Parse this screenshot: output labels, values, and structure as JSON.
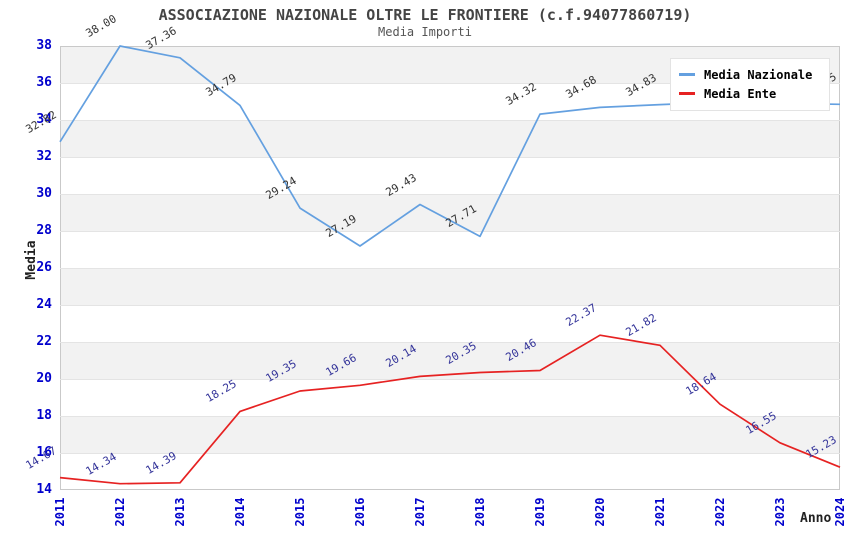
{
  "chart_data": {
    "type": "line",
    "title": "ASSOCIAZIONE NAZIONALE OLTRE LE FRONTIERE (c.f.94077860719)",
    "subtitle": "Media Importi",
    "xlabel": "Anno",
    "ylabel": "Media",
    "x": [
      2011,
      2012,
      2013,
      2014,
      2015,
      2016,
      2017,
      2018,
      2019,
      2020,
      2021,
      2022,
      2023,
      2024
    ],
    "ylim": [
      14,
      38
    ],
    "ytick_step": 2,
    "grid": true,
    "band_fill": true,
    "legend_position": "top-right",
    "series": [
      {
        "name": "Media Nazionale",
        "color": "#64a0e0",
        "label_color": "#333333",
        "values": [
          32.82,
          38.0,
          37.36,
          34.79,
          29.24,
          27.19,
          29.43,
          27.71,
          34.32,
          34.68,
          34.83,
          34.97,
          34.9,
          34.85
        ],
        "labels": [
          "32.82",
          "38.00",
          "37.36",
          "34.79",
          "29.24",
          "27.19",
          "29.43",
          "27.71",
          "34.32",
          "34.68",
          "34.83",
          "",
          "",
          "34.85"
        ]
      },
      {
        "name": "Media Ente",
        "color": "#e62222",
        "label_color": "#333399",
        "values": [
          14.67,
          14.34,
          14.39,
          18.25,
          19.35,
          19.66,
          20.14,
          20.35,
          20.46,
          22.37,
          21.82,
          18.64,
          16.55,
          15.23
        ],
        "labels": [
          "14.67",
          "14.34",
          "14.39",
          "18.25",
          "19.35",
          "19.66",
          "20.14",
          "20.35",
          "20.46",
          "22.37",
          "21.82",
          "18.64",
          "16.55",
          "15.23"
        ]
      }
    ],
    "colors": {
      "axis_tick_label": "#0000cc",
      "band_gray": "#f2f2f2",
      "band_white": "#ffffff",
      "plot_border": "#c9c9c9",
      "gridline": "#e4e4e4",
      "title_text": "#444444",
      "subtitle_text": "#555555",
      "legend_border": "#e3e3e3"
    }
  }
}
